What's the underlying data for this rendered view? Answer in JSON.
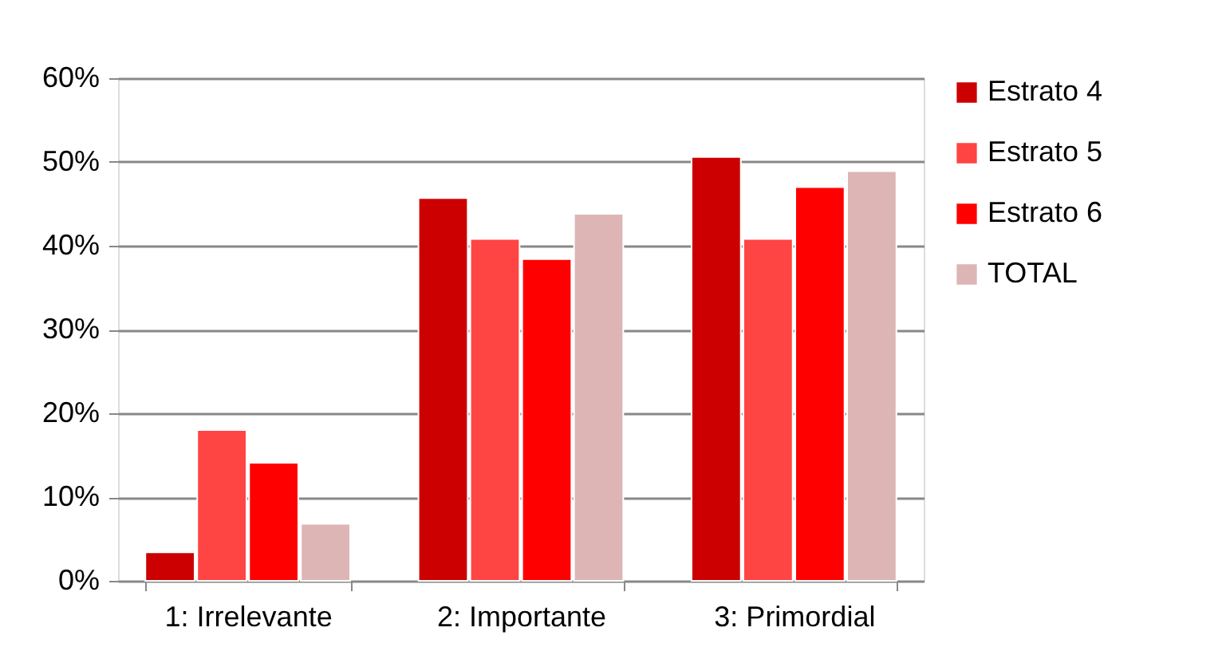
{
  "chart_data": {
    "type": "bar",
    "categories": [
      "1: Irrelevante",
      "2: Importante",
      "3: Primordial"
    ],
    "series": [
      {
        "name": "Estrato 4",
        "color": "#cc0000",
        "values": [
          3.4,
          45.7,
          50.6
        ]
      },
      {
        "name": "Estrato 5",
        "color": "#ff4444",
        "values": [
          18.0,
          40.8,
          40.8
        ]
      },
      {
        "name": "Estrato 6",
        "color": "#ff0000",
        "values": [
          14.1,
          38.4,
          47.0
        ]
      },
      {
        "name": "TOTAL",
        "color": "#ddb5b5",
        "values": [
          6.8,
          43.8,
          48.9
        ]
      }
    ],
    "ylim": [
      0,
      60
    ],
    "yticks": [
      {
        "value": 0,
        "label": "0%"
      },
      {
        "value": 10,
        "label": "10%"
      },
      {
        "value": 20,
        "label": "20%"
      },
      {
        "value": 30,
        "label": "30%"
      },
      {
        "value": 40,
        "label": "40%"
      },
      {
        "value": 50,
        "label": "50%"
      },
      {
        "value": 60,
        "label": "60%"
      }
    ],
    "grid": "y",
    "legend": "right"
  }
}
